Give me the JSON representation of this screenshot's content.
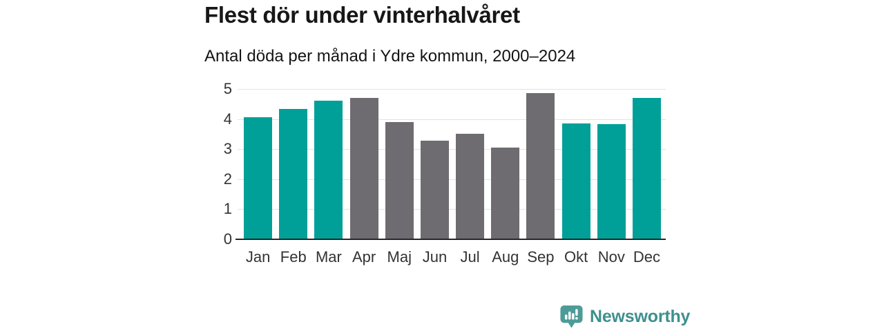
{
  "header": {
    "title": "Flest dör under vinterhalvåret",
    "subtitle": "Antal döda per månad i Ydre kommun, 2000–2024"
  },
  "chart_data": {
    "type": "bar",
    "title": "Flest dör under vinterhalvåret",
    "subtitle": "Antal döda per månad i Ydre kommun, 2000–2024",
    "categories": [
      "Jan",
      "Feb",
      "Mar",
      "Apr",
      "Maj",
      "Jun",
      "Jul",
      "Aug",
      "Sep",
      "Okt",
      "Nov",
      "Dec"
    ],
    "values": [
      4.06,
      4.33,
      4.62,
      4.7,
      3.89,
      3.28,
      3.52,
      3.05,
      4.86,
      3.86,
      3.82,
      4.7
    ],
    "series_colors": [
      "#00a098",
      "#00a098",
      "#00a098",
      "#6e6c70",
      "#6e6c70",
      "#6e6c70",
      "#6e6c70",
      "#6e6c70",
      "#6e6c70",
      "#00a098",
      "#00a098",
      "#00a098"
    ],
    "xlabel": "",
    "ylabel": "",
    "ylim": [
      0,
      5
    ],
    "yticks": [
      0,
      1,
      2,
      3,
      4,
      5
    ],
    "grid": true,
    "legend": "none",
    "colors": {
      "highlight_teal": "#00a098",
      "neutral_gray": "#6e6c70",
      "gridline": "#e2e2e2",
      "axis_line": "#262626",
      "tick_text": "#333333"
    }
  },
  "footer": {
    "brand": "Newsworthy",
    "brand_color": "#3e908e",
    "icon_color": "#4c9b99",
    "logo_icon": "bar-chart-speech-bubble-icon"
  }
}
